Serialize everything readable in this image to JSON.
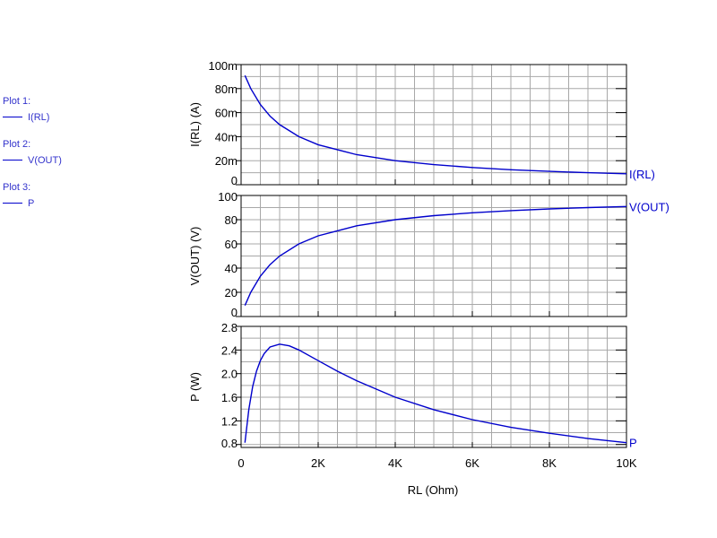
{
  "legend": [
    {
      "plot": "Plot 1:",
      "trace": "I(RL)"
    },
    {
      "plot": "Plot 2:",
      "trace": "V(OUT)"
    },
    {
      "plot": "Plot 3:",
      "trace": "P"
    }
  ],
  "colors": {
    "trace": "#0000cc",
    "grid": "#a8a8a8",
    "axis": "#000000",
    "legend_text": "#3333cc"
  },
  "chart_data": [
    {
      "type": "line",
      "ylabel": "I(RL)  (A)",
      "xlabel": "",
      "xlim": [
        0,
        10000
      ],
      "ylim": [
        0,
        0.1
      ],
      "yticks": [
        0,
        0.02,
        0.04,
        0.06,
        0.08,
        0.1
      ],
      "ytick_labels": [
        "0",
        "20m",
        "40m",
        "60m",
        "80m",
        "100m"
      ],
      "grid": true,
      "series": [
        {
          "name": "I(RL)",
          "x": [
            100,
            250,
            500,
            750,
            1000,
            1500,
            2000,
            3000,
            4000,
            5000,
            6000,
            7000,
            8000,
            9000,
            10000
          ],
          "y": [
            0.0909,
            0.08,
            0.0667,
            0.0571,
            0.05,
            0.04,
            0.0333,
            0.025,
            0.02,
            0.0167,
            0.0143,
            0.0125,
            0.0111,
            0.01,
            0.0091
          ]
        }
      ]
    },
    {
      "type": "line",
      "ylabel": "V(OUT)  (V)",
      "xlabel": "",
      "xlim": [
        0,
        10000
      ],
      "ylim": [
        0,
        100
      ],
      "yticks": [
        0,
        20,
        40,
        60,
        80,
        100
      ],
      "ytick_labels": [
        "0",
        "20",
        "40",
        "60",
        "80",
        "100"
      ],
      "grid": true,
      "series": [
        {
          "name": "V(OUT)",
          "x": [
            100,
            250,
            500,
            750,
            1000,
            1500,
            2000,
            3000,
            4000,
            5000,
            6000,
            7000,
            8000,
            9000,
            10000
          ],
          "y": [
            9.09,
            20,
            33.3,
            42.9,
            50,
            60,
            66.7,
            75,
            80,
            83.3,
            85.7,
            87.5,
            88.9,
            90,
            90.9
          ]
        }
      ]
    },
    {
      "type": "line",
      "ylabel": "P  (W)",
      "xlabel": "RL  (Ohm)",
      "xlim": [
        0,
        10000
      ],
      "ylim": [
        0.75,
        2.8
      ],
      "yticks": [
        0.8,
        1.2,
        1.6,
        2.0,
        2.4,
        2.8
      ],
      "ytick_labels": [
        "0.8",
        "1.2",
        "1.6",
        "2.0",
        "2.4",
        "2.8"
      ],
      "xticks": [
        0,
        2000,
        4000,
        6000,
        8000,
        10000
      ],
      "xtick_labels": [
        "0",
        "2K",
        "4K",
        "6K",
        "8K",
        "10K"
      ],
      "grid": true,
      "series": [
        {
          "name": "P",
          "x": [
            100,
            200,
            300,
            400,
            500,
            600,
            750,
            1000,
            1250,
            1500,
            2000,
            2500,
            3000,
            4000,
            5000,
            6000,
            7000,
            8000,
            9000,
            10000
          ],
          "y": [
            0.83,
            1.39,
            1.78,
            2.04,
            2.22,
            2.34,
            2.45,
            2.5,
            2.47,
            2.4,
            2.22,
            2.04,
            1.88,
            1.6,
            1.39,
            1.22,
            1.09,
            0.99,
            0.9,
            0.83
          ]
        }
      ]
    }
  ]
}
